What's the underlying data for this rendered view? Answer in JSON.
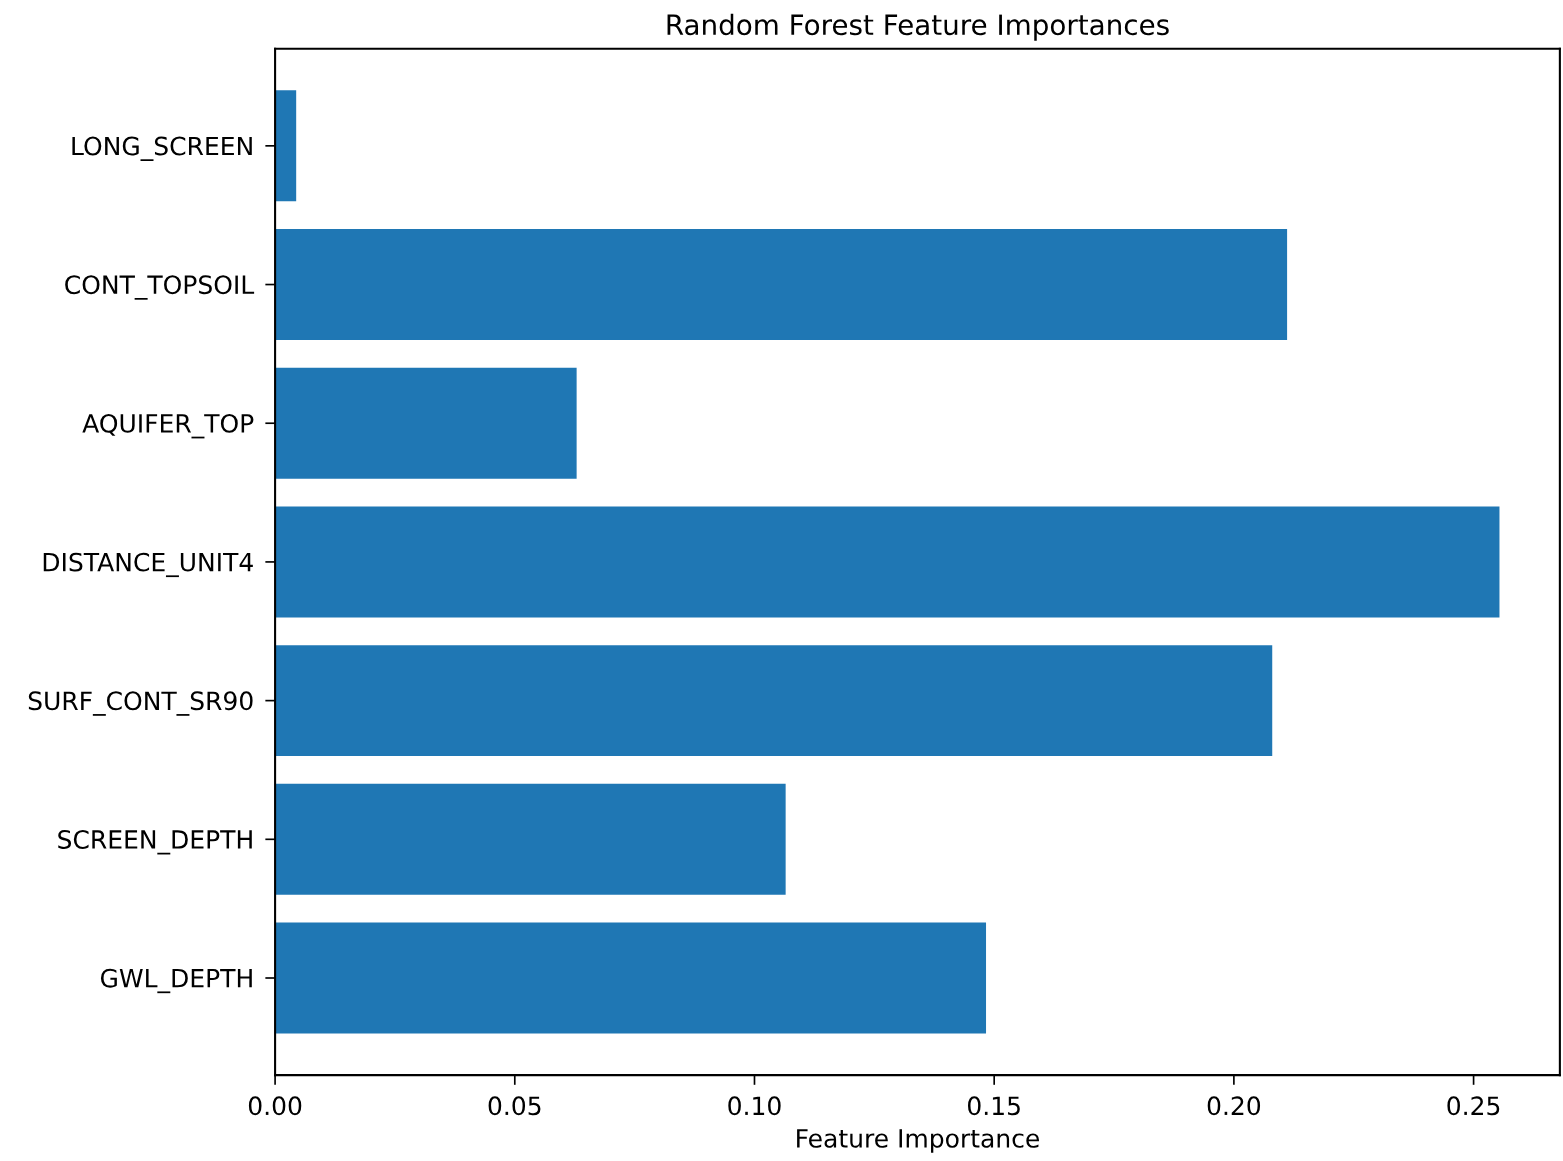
{
  "chart_data": {
    "type": "bar",
    "orientation": "horizontal",
    "title": "Random Forest Feature Importances",
    "xlabel": "Feature Importance",
    "categories": [
      "LONG_SCREEN",
      "CONT_TOPSOIL",
      "AQUIFER_TOP",
      "DISTANCE_UNIT4",
      "SURF_CONT_SR90",
      "SCREEN_DEPTH",
      "GWL_DEPTH"
    ],
    "values": [
      0.0044,
      0.2111,
      0.0629,
      0.2554,
      0.208,
      0.1065,
      0.1483
    ],
    "color": "#1f77b4",
    "xlim": [
      0,
      0.268
    ],
    "xticks": [
      {
        "value": 0,
        "label": "0.00"
      },
      {
        "value": 0.05,
        "label": "0.05"
      },
      {
        "value": 0.1,
        "label": "0.10"
      },
      {
        "value": 0.15,
        "label": "0.15"
      },
      {
        "value": 0.2,
        "label": "0.20"
      },
      {
        "value": 0.25,
        "label": "0.25"
      }
    ],
    "grid": false
  }
}
